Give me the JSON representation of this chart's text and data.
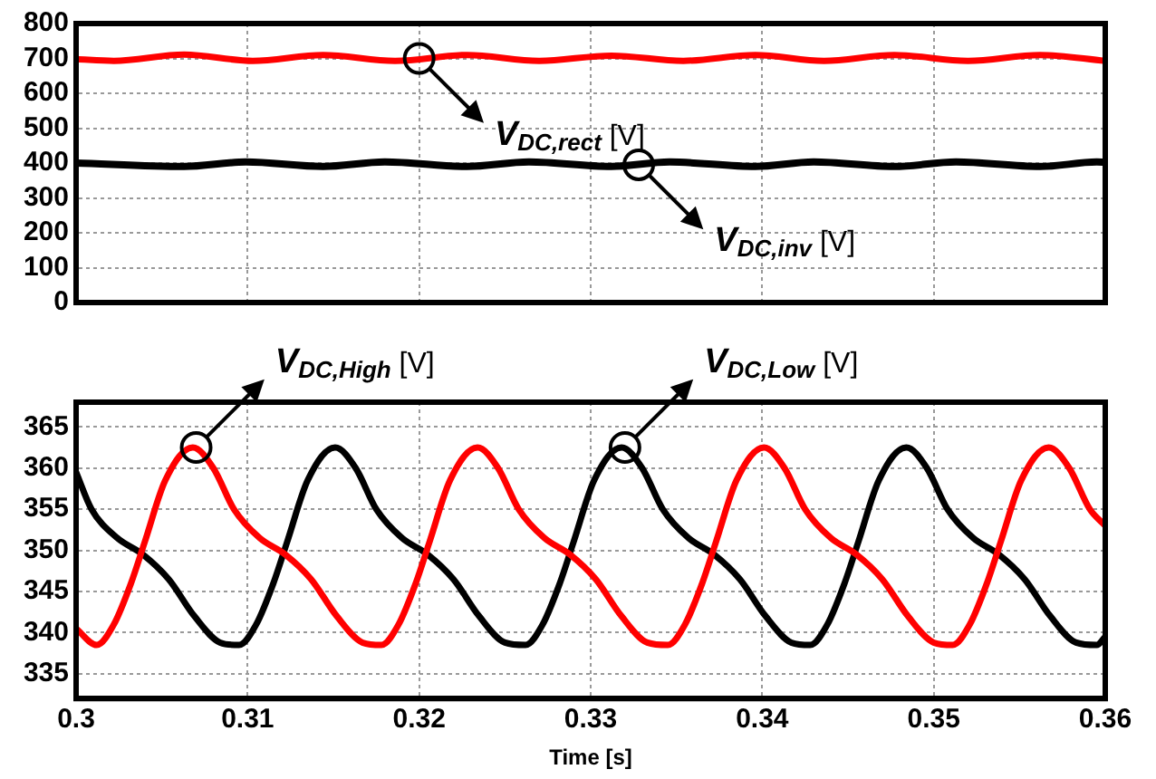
{
  "chart_data": [
    {
      "type": "line",
      "xlim": [
        0.3,
        0.36
      ],
      "xticks": [
        0.3,
        0.31,
        0.32,
        0.33,
        0.34,
        0.35,
        0.36
      ],
      "ylim": [
        0,
        800
      ],
      "yticks": [
        0,
        100,
        200,
        300,
        400,
        500,
        600,
        700,
        800
      ],
      "grid": true,
      "tick_labels": "y",
      "series": [
        {
          "color": "#ff0000",
          "x": [
            0.3,
            0.3022,
            0.3063,
            0.3103,
            0.3144,
            0.3186,
            0.3228,
            0.327,
            0.3312,
            0.3354,
            0.3396,
            0.3436,
            0.3477,
            0.352,
            0.3562,
            0.36
          ],
          "values": [
            698,
            693,
            711,
            693,
            710,
            693,
            710,
            693,
            708,
            693,
            710,
            693,
            710,
            693,
            710,
            693
          ]
        },
        {
          "color": "#000000",
          "x": [
            0.3,
            0.3063,
            0.3099,
            0.3144,
            0.318,
            0.3228,
            0.3264,
            0.3312,
            0.3346,
            0.3396,
            0.343,
            0.3477,
            0.3513,
            0.3562,
            0.3595,
            0.36
          ],
          "values": [
            400,
            390,
            403,
            390,
            403,
            390,
            403,
            390,
            403,
            390,
            403,
            390,
            403,
            390,
            403,
            402
          ]
        }
      ],
      "annotations": [
        {
          "text": "V$_{DC,rect}$ [V]",
          "x": 0.32,
          "y": 700
        },
        {
          "text": "V$_{DC,inv}$ [V]",
          "x": 0.3328,
          "y": 395
        }
      ]
    },
    {
      "type": "line",
      "xlim": [
        0.3,
        0.36
      ],
      "xticks": [
        0.3,
        0.31,
        0.32,
        0.33,
        0.34,
        0.35,
        0.36
      ],
      "ylim": [
        332,
        368
      ],
      "yticks": [
        335,
        340,
        345,
        350,
        355,
        360,
        365
      ],
      "grid": true,
      "xlabel": "Time [s]",
      "series": [
        {
          "color": "#ff0000",
          "x": [
            0.3,
            0.3012,
            0.3022,
            0.3032,
            0.304,
            0.3052,
            0.3068,
            0.308,
            0.3092,
            0.3107,
            0.3122,
            0.3137,
            0.3152,
            0.3167,
            0.3178,
            0.3188,
            0.3198,
            0.3206,
            0.3218,
            0.3234,
            0.3246,
            0.3258,
            0.3273,
            0.3288,
            0.3303,
            0.3318,
            0.3333,
            0.3345,
            0.3355,
            0.3365,
            0.3373,
            0.3385,
            0.3401,
            0.3413,
            0.3425,
            0.344,
            0.3455,
            0.347,
            0.3485,
            0.35,
            0.3511,
            0.3521,
            0.3531,
            0.3539,
            0.3551,
            0.3567,
            0.3579,
            0.3591,
            0.36
          ],
          "values": [
            340.5,
            338.5,
            341,
            346,
            351,
            358.5,
            362.5,
            360,
            355,
            351.5,
            349.5,
            346.5,
            342,
            338.8,
            338.5,
            341,
            346,
            351,
            358.5,
            362.5,
            360,
            355,
            351.5,
            349.5,
            346.5,
            342,
            338.8,
            338.5,
            341,
            346,
            351,
            358.5,
            362.5,
            360,
            355,
            351.5,
            349.5,
            346.5,
            342,
            338.8,
            338.5,
            341,
            346,
            351,
            358.5,
            362.5,
            360,
            355,
            353
          ]
        },
        {
          "color": "#000000",
          "x": [
            0.3,
            0.3009,
            0.3024,
            0.3039,
            0.3054,
            0.3069,
            0.3084,
            0.3095,
            0.3105,
            0.3115,
            0.3123,
            0.3135,
            0.3151,
            0.3163,
            0.3175,
            0.319,
            0.3205,
            0.322,
            0.3235,
            0.325,
            0.3262,
            0.3272,
            0.3282,
            0.329,
            0.3302,
            0.3318,
            0.333,
            0.3342,
            0.3357,
            0.3372,
            0.3387,
            0.3402,
            0.3417,
            0.3428,
            0.3438,
            0.3448,
            0.3456,
            0.3468,
            0.3484,
            0.3496,
            0.3508,
            0.3523,
            0.3538,
            0.3553,
            0.3568,
            0.3583,
            0.3595,
            0.36
          ],
          "values": [
            359.5,
            355,
            351.5,
            349.5,
            346.5,
            342,
            338.8,
            338.5,
            341,
            346,
            351,
            358.5,
            362.5,
            360,
            355,
            351.5,
            349.5,
            346.5,
            342,
            338.8,
            338.5,
            341,
            346,
            351,
            358.5,
            362.5,
            360,
            355,
            351.5,
            349.5,
            346.5,
            342,
            338.8,
            338.5,
            341,
            346,
            351,
            358.5,
            362.5,
            360,
            355,
            351.5,
            349.5,
            346.5,
            342,
            338.8,
            338.5,
            339.5
          ]
        }
      ],
      "annotations": [
        {
          "text": "V$_{DC,High}$ [V]",
          "x": 0.307,
          "y": 362.5
        },
        {
          "text": "V$_{DC,Low}$ [V]",
          "x": 0.332,
          "y": 362.5
        }
      ]
    }
  ]
}
